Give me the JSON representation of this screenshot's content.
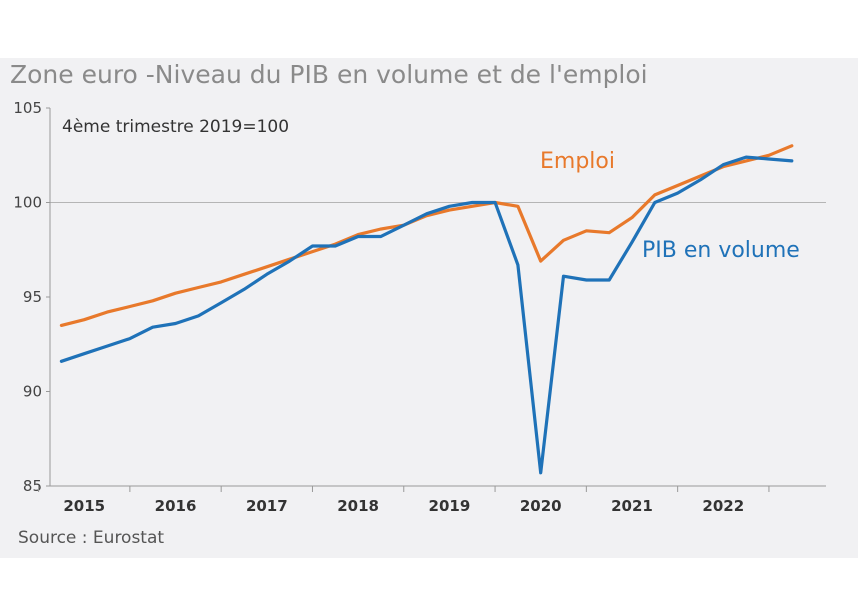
{
  "colors": {
    "emploi": "#e8792b",
    "pib": "#1f72b8",
    "axis": "#999999"
  },
  "chart_data": {
    "type": "line",
    "title": "Zone euro -Niveau du PIB en volume et de l'emploi",
    "subtitle": "4ème trimestre 2019=100",
    "source": "Source : Eurostat",
    "ylim": [
      85,
      105
    ],
    "yticks": [
      85,
      90,
      95,
      100,
      105
    ],
    "xlim": [
      2014.625,
      2023.125
    ],
    "x_ticks": [
      {
        "label": "2015",
        "x": 2015.0
      },
      {
        "label": "2016",
        "x": 2016.0
      },
      {
        "label": "2017",
        "x": 2017.0
      },
      {
        "label": "2018",
        "x": 2018.0
      },
      {
        "label": "2019",
        "x": 2019.0
      },
      {
        "label": "2020",
        "x": 2020.0
      },
      {
        "label": "2021",
        "x": 2021.0
      },
      {
        "label": "2022",
        "x": 2022.0
      }
    ],
    "grid": "horizontal-100",
    "x": [
      2014.75,
      2015.0,
      2015.25,
      2015.5,
      2015.75,
      2016.0,
      2016.25,
      2016.5,
      2016.75,
      2017.0,
      2017.25,
      2017.5,
      2017.75,
      2018.0,
      2018.25,
      2018.5,
      2018.75,
      2019.0,
      2019.25,
      2019.5,
      2019.75,
      2020.0,
      2020.25,
      2020.5,
      2020.75,
      2021.0,
      2021.25,
      2021.5,
      2021.75,
      2022.0,
      2022.25,
      2022.5,
      2022.75
    ],
    "series": [
      {
        "name": "Emploi",
        "color_key": "emploi",
        "values": [
          93.5,
          93.8,
          94.2,
          94.5,
          94.8,
          95.2,
          95.5,
          95.8,
          96.2,
          96.6,
          97.0,
          97.4,
          97.8,
          98.3,
          98.6,
          98.8,
          99.3,
          99.6,
          99.8,
          100.0,
          99.8,
          96.9,
          98.0,
          98.5,
          98.4,
          99.2,
          100.4,
          100.9,
          101.4,
          101.9,
          102.2,
          102.5,
          103.0
        ]
      },
      {
        "name": "PIB en volume",
        "color_key": "pib",
        "values": [
          91.6,
          92.0,
          92.4,
          92.8,
          93.4,
          93.6,
          94.0,
          94.7,
          95.4,
          96.2,
          96.9,
          97.7,
          97.7,
          98.2,
          98.2,
          98.8,
          99.4,
          99.8,
          100.0,
          100.0,
          96.7,
          85.7,
          96.1,
          95.9,
          95.9,
          97.9,
          100.0,
          100.5,
          101.2,
          102.0,
          102.4,
          102.3,
          102.2
        ]
      }
    ]
  }
}
